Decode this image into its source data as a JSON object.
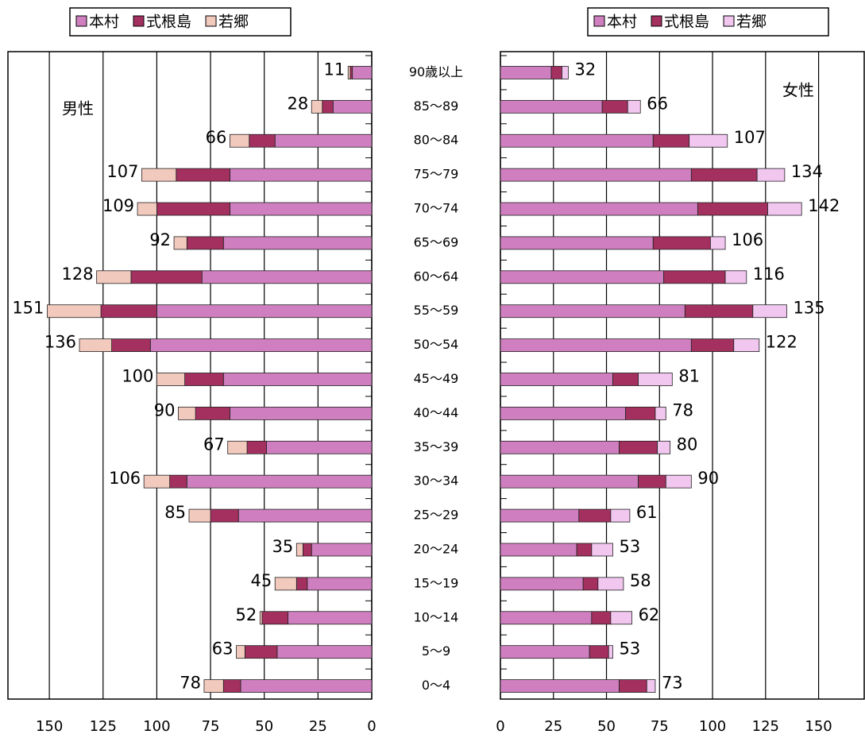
{
  "chart_data": [
    {
      "type": "stacked-barh",
      "annotation": "男性",
      "direction": "left",
      "categories": [
        "90歳以上",
        "85～89",
        "80～84",
        "75～79",
        "70～74",
        "65～69",
        "60～64",
        "55～59",
        "50～54",
        "45～49",
        "40～44",
        "35～39",
        "30～34",
        "25～29",
        "20～24",
        "15～19",
        "10～14",
        "5～9",
        "0～4"
      ],
      "series": [
        {
          "name": "本村",
          "color": "#cf7fbf",
          "values": [
            9,
            18,
            45,
            66,
            66,
            69,
            79,
            100,
            103,
            69,
            66,
            49,
            86,
            62,
            28,
            30,
            39,
            44,
            61
          ]
        },
        {
          "name": "式根島",
          "color": "#a3305f",
          "values": [
            1,
            5,
            12,
            25,
            34,
            17,
            33,
            26,
            18,
            18,
            16,
            9,
            8,
            13,
            4,
            5,
            12,
            15,
            8
          ]
        },
        {
          "name": "若郷",
          "color": "#f2c9bd",
          "values": [
            1,
            5,
            9,
            16,
            9,
            6,
            16,
            25,
            15,
            13,
            8,
            9,
            12,
            10,
            3,
            10,
            1,
            4,
            9
          ]
        }
      ],
      "totals": [
        11,
        28,
        66,
        107,
        109,
        92,
        128,
        151,
        136,
        100,
        90,
        67,
        106,
        85,
        35,
        45,
        52,
        63,
        78
      ],
      "xlim": [
        0,
        170
      ],
      "xticks": [
        150,
        125,
        100,
        75,
        50,
        25,
        0
      ],
      "grid": true
    },
    {
      "type": "stacked-barh",
      "annotation": "女性",
      "direction": "right",
      "series": [
        {
          "name": "本村",
          "color": "#cf7fbf",
          "values": [
            24,
            48,
            72,
            90,
            93,
            72,
            77,
            87,
            90,
            53,
            59,
            56,
            65,
            37,
            36,
            39,
            43,
            42,
            56
          ]
        },
        {
          "name": "式根島",
          "color": "#a3305f",
          "values": [
            5,
            12,
            17,
            31,
            33,
            27,
            29,
            32,
            20,
            12,
            14,
            18,
            13,
            15,
            7,
            7,
            9,
            9,
            13
          ]
        },
        {
          "name": "若郷",
          "color": "#f1c6ef",
          "values": [
            3,
            6,
            18,
            13,
            16,
            7,
            10,
            16,
            12,
            16,
            5,
            6,
            12,
            9,
            10,
            12,
            10,
            2,
            4
          ]
        }
      ],
      "totals": [
        32,
        66,
        107,
        134,
        142,
        106,
        116,
        135,
        122,
        81,
        78,
        80,
        90,
        61,
        53,
        58,
        62,
        53,
        73
      ],
      "xlim": [
        0,
        170
      ],
      "xticks": [
        0,
        25,
        50,
        75,
        100,
        125,
        150
      ],
      "grid": true
    }
  ]
}
